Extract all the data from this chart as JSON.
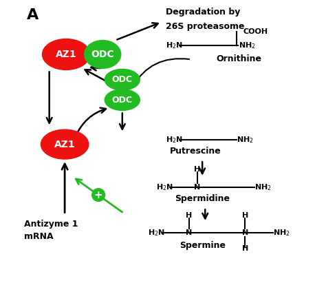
{
  "title_label": "A",
  "bg_color": "#ffffff",
  "az1_color": "#ee1111",
  "odc_color": "#22bb22",
  "az1_text_color": "#ffffff",
  "odc_text_color": "#ffffff",
  "arrow_color": "#000000",
  "green_arrow_color": "#22bb22",
  "plus_color": "#22bb22",
  "degradation_text": [
    "Degradation by",
    "26S proteasome"
  ],
  "ornithine_label": "Ornithine",
  "putrescine_label": "Putrescine",
  "spermidine_label": "Spermidine",
  "spermine_label": "Spermine",
  "antizyme_label": [
    "Antizyme 1",
    "mRNA"
  ]
}
